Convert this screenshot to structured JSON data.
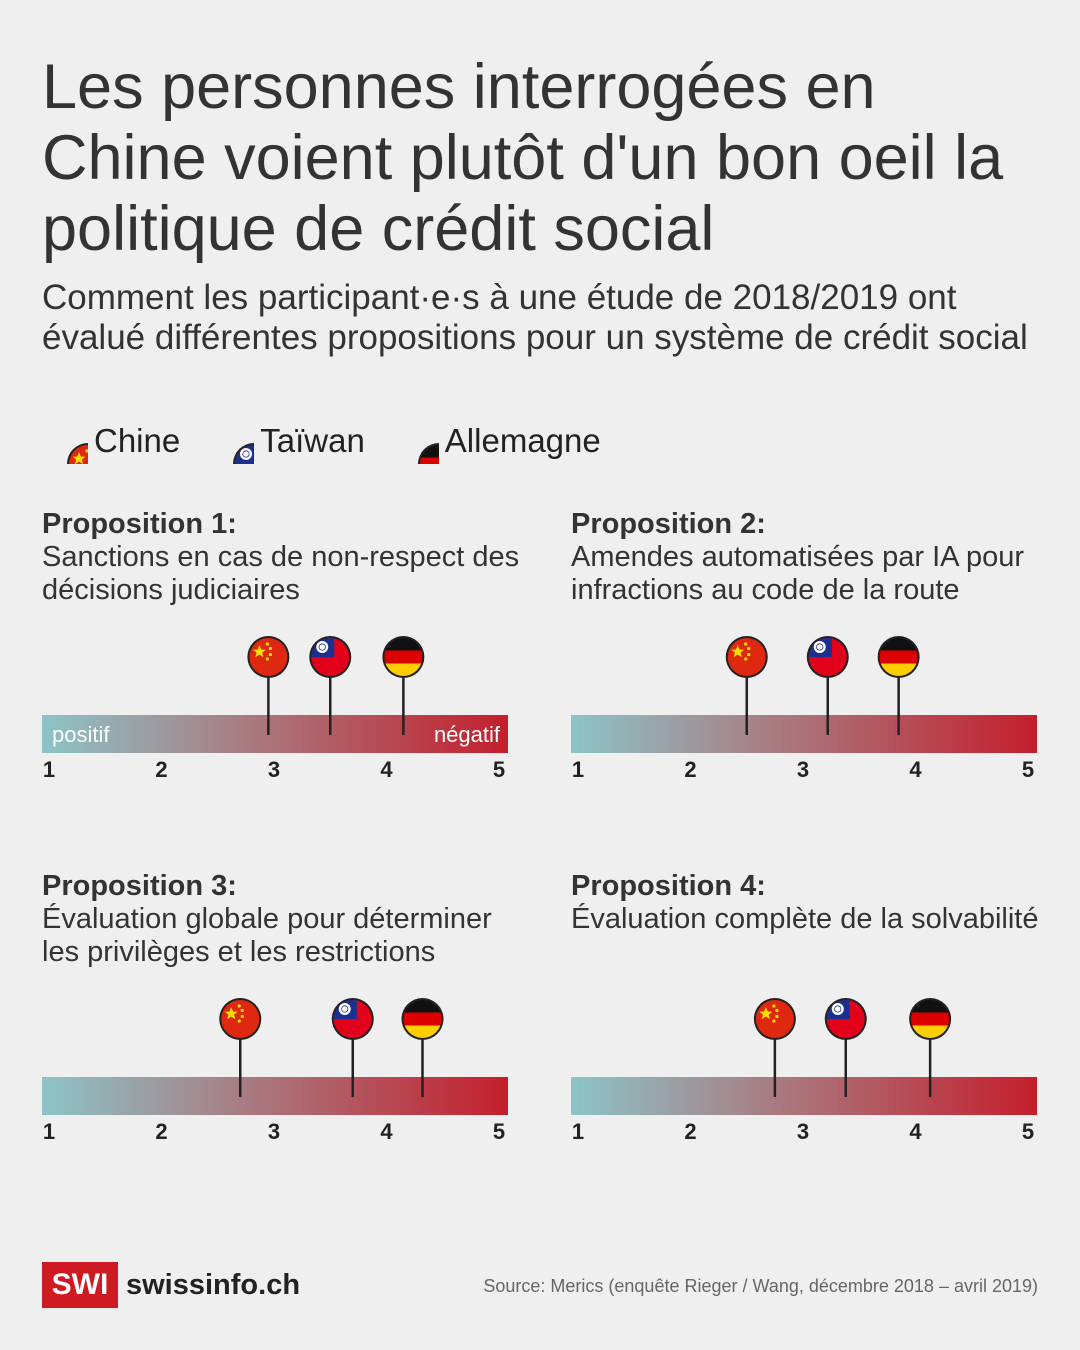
{
  "title": "Les personnes interrogées en Chine voient plutôt d'un bon oeil la politique de crédit social",
  "subtitle": "Comment les participant·e·s à une étude de 2018/2019 ont évalué différentes propositions pour un système de crédit social",
  "legend": [
    {
      "label": "Chine",
      "flag": "china-flag"
    },
    {
      "label": "Taïwan",
      "flag": "taiwan-flag"
    },
    {
      "label": "Allemagne",
      "flag": "germany-flag"
    }
  ],
  "chart_data": {
    "type": "scatter",
    "scale_min": 1,
    "scale_max": 5,
    "ticks": [
      "1",
      "2",
      "3",
      "4",
      "5"
    ],
    "scale_labels": {
      "low": "positif",
      "high": "négatif"
    },
    "colors": {
      "positive": "#8cc4c8",
      "negative": "#c41e2c"
    },
    "series": [
      "Chine",
      "Taïwan",
      "Allemagne"
    ],
    "propositions": [
      {
        "title": "Proposition 1:",
        "description": "Sanctions en cas de non-respect des décisions judiciaires",
        "values": {
          "Chine": 2.95,
          "Taïwan": 3.5,
          "Allemagne": 4.15
        }
      },
      {
        "title": "Proposition 2:",
        "description": "Amendes automatisées par IA pour infractions au code de la route",
        "values": {
          "Chine": 2.5,
          "Taïwan": 3.22,
          "Allemagne": 3.85
        }
      },
      {
        "title": "Proposition 3:",
        "description": "Évaluation globale pour déterminer les privilèges et les restrictions",
        "values": {
          "Chine": 2.7,
          "Taïwan": 3.7,
          "Allemagne": 4.32
        }
      },
      {
        "title": "Proposition 4:",
        "description": "Évaluation complète de la solvabilité",
        "values": {
          "Chine": 2.75,
          "Taïwan": 3.38,
          "Allemagne": 4.13
        }
      }
    ]
  },
  "footer": {
    "logo_text": "SWI",
    "brand": "swissinfo.ch",
    "source": "Source: Merics (enquête Rieger / Wang, décembre 2018 – avril 2019)"
  }
}
